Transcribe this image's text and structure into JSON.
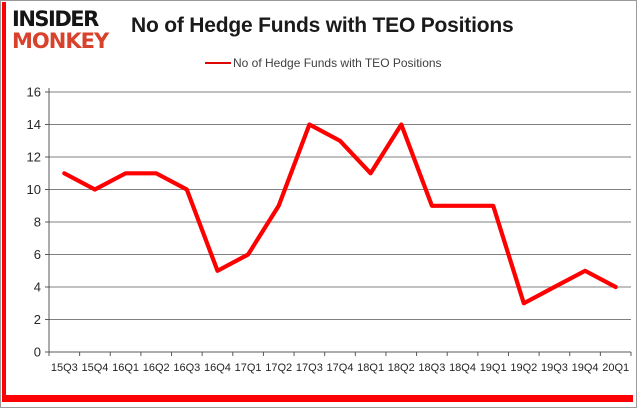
{
  "branding": {
    "logo_line1": "INSIDER",
    "logo_line2": "MONKEY"
  },
  "header": {
    "title": "No of Hedge Funds with TEO Positions"
  },
  "legend": {
    "label": "No of Hedge Funds with TEO Positions"
  },
  "chart_data": {
    "type": "line",
    "title": "No of Hedge Funds with TEO Positions",
    "categories": [
      "15Q3",
      "15Q4",
      "16Q1",
      "16Q2",
      "16Q3",
      "16Q4",
      "17Q1",
      "17Q2",
      "17Q3",
      "17Q4",
      "18Q1",
      "18Q2",
      "18Q3",
      "18Q4",
      "19Q1",
      "19Q2",
      "19Q3",
      "19Q4",
      "20Q1"
    ],
    "series": [
      {
        "name": "No of Hedge Funds with TEO Positions",
        "color": "#fe0000",
        "values": [
          11,
          10,
          11,
          11,
          10,
          5,
          6,
          9,
          14,
          13,
          11,
          14,
          9,
          9,
          9,
          3,
          4,
          5,
          4
        ]
      }
    ],
    "xlabel": "",
    "ylabel": "",
    "ylim": [
      0,
      16
    ],
    "yticks": [
      0,
      2,
      4,
      6,
      8,
      10,
      12,
      14,
      16
    ],
    "grid": true,
    "legend_position": "top"
  },
  "colors": {
    "line_red": "#fe0000",
    "accent_red": "#fc0204",
    "logo_red": "#d8422c",
    "grid_gray": "#808080",
    "axis_gray": "#595959",
    "tick_label": "#262626",
    "frame_gray": "#9b9b9b"
  }
}
